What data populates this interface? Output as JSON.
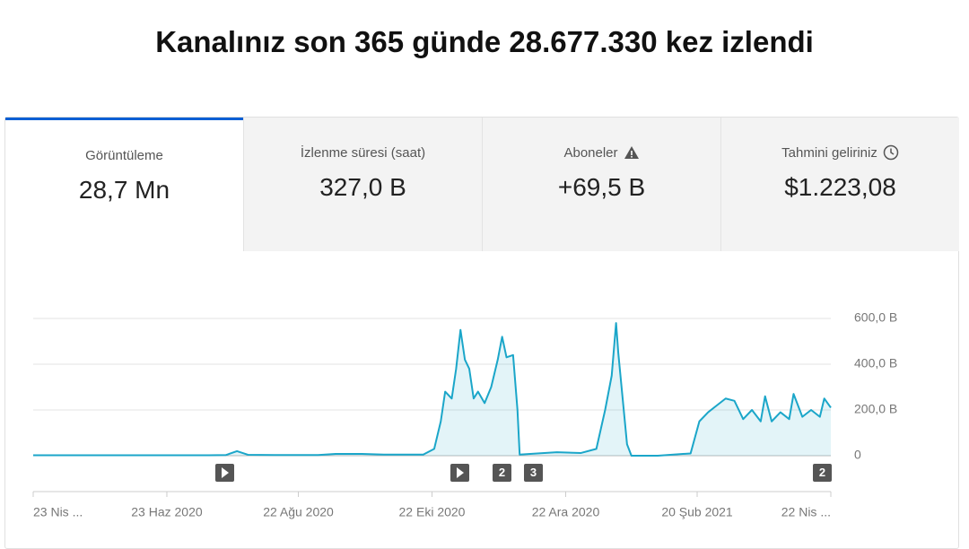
{
  "header": {
    "title": "Kanalınız son 365 günde 28.677.330 kez izlendi"
  },
  "tabs": [
    {
      "label": "Görüntüleme",
      "value": "28,7 Mn"
    },
    {
      "label": "İzlenme süresi (saat)",
      "value": "327,0 B"
    },
    {
      "label": "Aboneler",
      "value": "+69,5 B"
    },
    {
      "label": "Tahmini geliriniz",
      "value": "$1.223,08"
    }
  ],
  "chart_data": {
    "type": "area",
    "x": [
      0,
      20,
      40,
      60,
      80,
      88,
      93,
      98,
      110,
      130,
      138,
      150,
      160,
      178,
      183,
      186,
      188,
      191,
      193,
      195,
      197,
      199,
      201,
      203,
      206,
      209,
      212,
      214,
      216,
      219,
      221,
      222,
      230,
      239,
      250,
      257,
      261,
      264,
      266,
      267,
      269,
      271,
      273,
      285,
      300,
      304,
      308,
      312,
      316,
      320,
      324,
      328,
      332,
      334,
      337,
      341,
      345,
      347,
      351,
      355,
      359,
      361,
      364
    ],
    "series": [
      {
        "name": "Görüntüleme",
        "color": "#1ba6c9",
        "values": [
          2,
          2,
          2,
          2,
          2,
          3,
          20,
          4,
          3,
          3,
          8,
          8,
          5,
          5,
          30,
          150,
          280,
          250,
          380,
          550,
          420,
          380,
          250,
          280,
          230,
          300,
          420,
          520,
          430,
          440,
          200,
          5,
          10,
          15,
          12,
          30,
          200,
          350,
          580,
          450,
          250,
          50,
          0,
          0,
          10,
          150,
          190,
          220,
          250,
          240,
          160,
          200,
          150,
          260,
          150,
          190,
          160,
          270,
          170,
          200,
          170,
          250,
          210
        ]
      }
    ],
    "xlim": [
      0,
      364
    ],
    "xticks": [
      {
        "value": 0,
        "label": "23 Nis ..."
      },
      {
        "value": 61,
        "label": "23 Haz 2020"
      },
      {
        "value": 121,
        "label": "22 Ağu 2020"
      },
      {
        "value": 182,
        "label": "22 Eki 2020"
      },
      {
        "value": 243,
        "label": "22 Ara 2020"
      },
      {
        "value": 303,
        "label": "20 Şub 2021"
      },
      {
        "value": 364,
        "label": "22 Nis ..."
      }
    ],
    "ylim": [
      0,
      600
    ],
    "yticks": [
      0,
      {
        "value": 200,
        "label": "200,0 B"
      },
      {
        "value": 400,
        "label": "400,0 B"
      },
      {
        "value": 600,
        "label": "600,0 B"
      }
    ],
    "grid": true,
    "annotations": [
      "2",
      "3",
      "2"
    ]
  }
}
